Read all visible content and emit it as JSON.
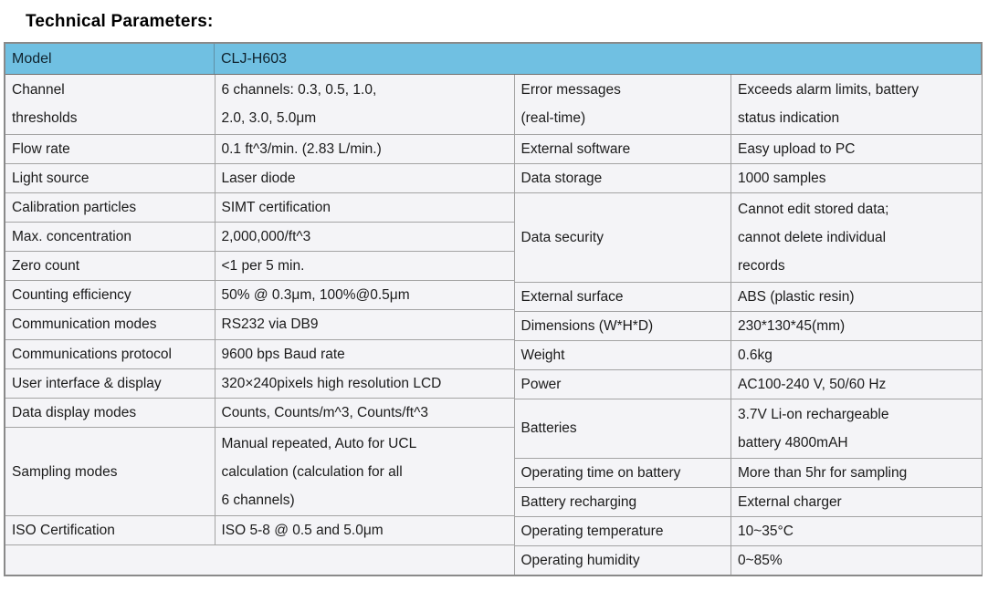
{
  "page": {
    "title": "Technical Parameters:"
  },
  "table": {
    "header": {
      "label": "Model",
      "value": "CLJ-H603"
    },
    "left_rows": [
      {
        "label": "Channel\nthresholds",
        "value": "6 channels: 0.3, 0.5, 1.0,\n2.0, 3.0, 5.0μm"
      },
      {
        "label": "Flow rate",
        "value": "0.1 ft^3/min. (2.83 L/min.)"
      },
      {
        "label": "Light source",
        "value": "Laser diode"
      },
      {
        "label": "Calibration particles",
        "value": "SIMT certification"
      },
      {
        "label": "Max. concentration",
        "value": "2,000,000/ft^3"
      },
      {
        "label": "Zero count",
        "value": "<1 per 5 min."
      },
      {
        "label": "Counting efficiency",
        "value": "50% @ 0.3μm, 100%@0.5μm"
      },
      {
        "label": "Communication modes",
        "value": "RS232 via DB9"
      },
      {
        "label": "Communications protocol",
        "value": "9600 bps Baud rate"
      },
      {
        "label": "User interface & display",
        "value": "320×240pixels high resolution LCD"
      },
      {
        "label": "Data display modes",
        "value": "Counts, Counts/m^3, Counts/ft^3"
      },
      {
        "label": "Sampling modes",
        "value": "Manual repeated, Auto for UCL\ncalculation (calculation for all\n6 channels)"
      },
      {
        "label": "ISO Certification",
        "value": "ISO 5-8 @ 0.5 and 5.0μm"
      },
      {
        "label": "",
        "value": ""
      }
    ],
    "right_rows": [
      {
        "label": "Error messages\n(real-time)",
        "value": "Exceeds alarm limits, battery\nstatus indication"
      },
      {
        "label": "External software",
        "value": "Easy upload to PC"
      },
      {
        "label": "Data storage",
        "value": "1000 samples"
      },
      {
        "label": "Data security",
        "value": "Cannot edit stored data;\ncannot delete individual\nrecords"
      },
      {
        "label": "External surface",
        "value": "ABS (plastic resin)"
      },
      {
        "label": "Dimensions (W*H*D)",
        "value": "230*130*45(mm)"
      },
      {
        "label": "Weight",
        "value": "0.6kg"
      },
      {
        "label": "Power",
        "value": "AC100-240 V, 50/60 Hz"
      },
      {
        "label": "Batteries",
        "value": "3.7V Li-on rechargeable\nbattery 4800mAH"
      },
      {
        "label": "Operating time on battery",
        "value": "More than 5hr for sampling"
      },
      {
        "label": "Battery recharging",
        "value": "External charger"
      },
      {
        "label": "Operating temperature",
        "value": "10~35°C"
      },
      {
        "label": "Operating humidity",
        "value": "0~85%"
      }
    ]
  },
  "colors": {
    "header_bg": "#70C0E2",
    "row_bg": "#F4F4F7",
    "inner_border": "#A3A3A3",
    "outer_border": "#8A8A8A",
    "text": "#1B1B1B"
  }
}
